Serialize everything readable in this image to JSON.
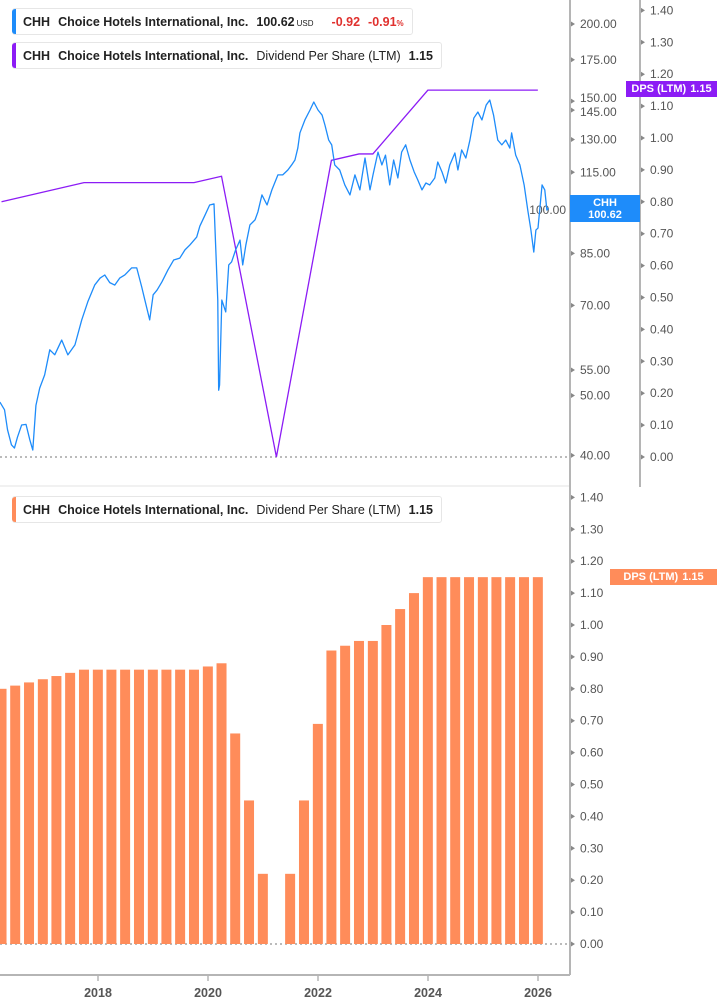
{
  "legends": {
    "price": {
      "ticker": "CHH",
      "company": "Choice Hotels International, Inc.",
      "price": "100.62",
      "currency": "USD",
      "change": "-0.92",
      "change_pct": "-0.91",
      "pct_sign": "%"
    },
    "dps_top": {
      "ticker": "CHH",
      "company": "Choice Hotels International, Inc.",
      "metric": "Dividend Per Share (LTM)",
      "value": "1.15"
    },
    "dps_bottom": {
      "ticker": "CHH",
      "company": "Choice Hotels International, Inc.",
      "metric": "Dividend Per Share (LTM)",
      "value": "1.15"
    }
  },
  "tags": {
    "price": {
      "line1": "CHH",
      "line2": "100.62"
    },
    "dps_top": {
      "line1": "DPS (LTM)",
      "line2": "1.15"
    },
    "dps_bottom": {
      "line1": "DPS (LTM)",
      "line2": "1.15"
    }
  },
  "colors": {
    "price": "#1e8cfa",
    "dps_line": "#8c1cf5",
    "dps_bar": "#ff8c5a",
    "axis": "#b5b5b5",
    "text": "#555555"
  },
  "chart_data": [
    {
      "type": "line",
      "scale": "log",
      "series_name": "CHH",
      "ylim": [
        40,
        215
      ],
      "y_ticks": [
        "200.00",
        "175.00",
        "150.00",
        "145.00",
        "130.00",
        "115.00",
        "100.00",
        "85.00",
        "70.00",
        "55.00",
        "50.00",
        "40.00"
      ],
      "price": [
        [
          "2016-03-20",
          48.8
        ],
        [
          "2016-04-20",
          47.4
        ],
        [
          "2016-05-10",
          44.0
        ],
        [
          "2016-06-05",
          41.6
        ],
        [
          "2016-06-25",
          41.1
        ],
        [
          "2016-07-15",
          42.8
        ],
        [
          "2016-08-12",
          44.8
        ],
        [
          "2016-09-10",
          44.9
        ],
        [
          "2016-10-05",
          42.4
        ],
        [
          "2016-10-25",
          40.8
        ],
        [
          "2016-11-15",
          48.2
        ],
        [
          "2016-12-10",
          51.4
        ],
        [
          "2017-01-12",
          54.0
        ],
        [
          "2017-02-15",
          59.3
        ],
        [
          "2017-03-20",
          58.2
        ],
        [
          "2017-05-05",
          61.5
        ],
        [
          "2017-06-15",
          58.2
        ],
        [
          "2017-08-01",
          60.4
        ],
        [
          "2017-09-15",
          66.3
        ],
        [
          "2017-10-25",
          70.9
        ],
        [
          "2017-12-10",
          75.5
        ],
        [
          "2018-01-15",
          77.5
        ],
        [
          "2018-02-15",
          78.4
        ],
        [
          "2018-03-20",
          76.2
        ],
        [
          "2018-04-22",
          75.5
        ],
        [
          "2018-05-25",
          77.5
        ],
        [
          "2018-06-28",
          78.4
        ],
        [
          "2018-08-12",
          80.5
        ],
        [
          "2018-09-15",
          80.5
        ],
        [
          "2018-10-18",
          75.0
        ],
        [
          "2018-11-08",
          71.4
        ],
        [
          "2018-12-10",
          66.3
        ],
        [
          "2019-01-02",
          72.8
        ],
        [
          "2019-01-28",
          74.1
        ],
        [
          "2019-03-01",
          76.4
        ],
        [
          "2019-04-10",
          79.9
        ],
        [
          "2019-05-18",
          82.9
        ],
        [
          "2019-06-28",
          83.5
        ],
        [
          "2019-08-01",
          86.1
        ],
        [
          "2019-09-03",
          87.7
        ],
        [
          "2019-10-18",
          90.3
        ],
        [
          "2019-11-08",
          94.1
        ],
        [
          "2019-12-12",
          98.0
        ],
        [
          "2020-01-12",
          101.8
        ],
        [
          "2020-02-10",
          102.2
        ],
        [
          "2020-02-22",
          86.1
        ],
        [
          "2020-03-06",
          71.4
        ],
        [
          "2020-03-12",
          51.0
        ],
        [
          "2020-03-18",
          52.0
        ],
        [
          "2020-04-02",
          71.4
        ],
        [
          "2020-04-28",
          68.3
        ],
        [
          "2020-05-18",
          81.4
        ],
        [
          "2020-06-06",
          82.3
        ],
        [
          "2020-07-03",
          86.1
        ],
        [
          "2020-08-01",
          89.3
        ],
        [
          "2020-08-19",
          81.4
        ],
        [
          "2020-09-09",
          87.7
        ],
        [
          "2020-10-06",
          94.5
        ],
        [
          "2020-11-09",
          96.3
        ],
        [
          "2020-11-28",
          99.2
        ],
        [
          "2020-12-25",
          105.7
        ],
        [
          "2021-01-28",
          101.8
        ],
        [
          "2021-03-01",
          107.7
        ],
        [
          "2021-04-10",
          113.9
        ],
        [
          "2021-05-12",
          113.9
        ],
        [
          "2021-06-15",
          116.0
        ],
        [
          "2021-07-10",
          118.2
        ],
        [
          "2021-08-01",
          120.4
        ],
        [
          "2021-08-20",
          125.9
        ],
        [
          "2021-09-03",
          133.2
        ],
        [
          "2021-10-06",
          139.8
        ],
        [
          "2021-11-09",
          145.1
        ],
        [
          "2021-12-04",
          149.5
        ],
        [
          "2022-01-01",
          145.1
        ],
        [
          "2022-01-28",
          142.4
        ],
        [
          "2022-02-16",
          137.2
        ],
        [
          "2022-03-13",
          129.7
        ],
        [
          "2022-04-02",
          127.4
        ],
        [
          "2022-04-22",
          118.2
        ],
        [
          "2022-05-25",
          116.0
        ],
        [
          "2022-06-28",
          109.7
        ],
        [
          "2022-08-01",
          105.7
        ],
        [
          "2022-09-03",
          113.9
        ],
        [
          "2022-10-06",
          107.7
        ],
        [
          "2022-11-09",
          121.3
        ],
        [
          "2022-12-12",
          107.7
        ],
        [
          "2023-01-01",
          113.9
        ],
        [
          "2023-02-03",
          124.0
        ],
        [
          "2023-03-01",
          118.2
        ],
        [
          "2023-03-25",
          122.6
        ],
        [
          "2023-04-22",
          109.7
        ],
        [
          "2023-05-18",
          120.4
        ],
        [
          "2023-06-15",
          112.6
        ],
        [
          "2023-07-10",
          124.0
        ],
        [
          "2023-08-06",
          127.4
        ],
        [
          "2023-09-03",
          120.4
        ],
        [
          "2023-10-01",
          115.2
        ],
        [
          "2023-10-25",
          111.8
        ],
        [
          "2023-11-22",
          107.7
        ],
        [
          "2023-12-18",
          110.5
        ],
        [
          "2024-01-12",
          109.7
        ],
        [
          "2024-02-15",
          112.6
        ],
        [
          "2024-03-06",
          119.5
        ],
        [
          "2024-04-03",
          115.2
        ],
        [
          "2024-04-28",
          110.5
        ],
        [
          "2024-05-25",
          118.2
        ],
        [
          "2024-06-28",
          123.6
        ],
        [
          "2024-07-18",
          116.0
        ],
        [
          "2024-08-12",
          125.0
        ],
        [
          "2024-09-09",
          121.3
        ],
        [
          "2024-10-06",
          129.7
        ],
        [
          "2024-11-01",
          140.8
        ],
        [
          "2024-11-28",
          144.0
        ],
        [
          "2024-12-25",
          139.8
        ],
        [
          "2025-01-22",
          147.8
        ],
        [
          "2025-02-15",
          150.6
        ],
        [
          "2025-03-12",
          142.4
        ],
        [
          "2025-04-09",
          129.7
        ],
        [
          "2025-05-06",
          127.4
        ],
        [
          "2025-06-01",
          129.7
        ],
        [
          "2025-06-28",
          125.9
        ],
        [
          "2025-07-10",
          133.2
        ],
        [
          "2025-08-06",
          122.6
        ],
        [
          "2025-09-03",
          118.2
        ],
        [
          "2025-10-01",
          109.7
        ],
        [
          "2025-10-25",
          99.9
        ],
        [
          "2025-11-15",
          92.7
        ],
        [
          "2025-12-04",
          85.4
        ],
        [
          "2025-12-18",
          92.7
        ],
        [
          "2026-01-01",
          93.4
        ],
        [
          "2026-01-28",
          109.7
        ],
        [
          "2026-02-15",
          107.7
        ],
        [
          "2026-03-01",
          99.9
        ],
        [
          "2026-03-12",
          100.62
        ]
      ],
      "dps_series_name": "DPS (LTM)",
      "dps_ylim": [
        0,
        1.4
      ],
      "dps_ticks": [
        "1.40",
        "1.30",
        "1.20",
        "1.10",
        "1.00",
        "0.90",
        "0.80",
        "0.70",
        "0.60",
        "0.50",
        "0.40",
        "0.30",
        "0.20",
        "0.10",
        "0.00"
      ],
      "dps_line": [
        [
          "2016-03-31",
          0.8
        ],
        [
          "2017-09-30",
          0.86
        ],
        [
          "2019-09-30",
          0.86
        ],
        [
          "2020-03-31",
          0.88
        ],
        [
          "2021-03-31",
          0.0
        ],
        [
          "2022-03-31",
          0.93
        ],
        [
          "2022-09-30",
          0.95
        ],
        [
          "2022-12-31",
          0.95
        ],
        [
          "2023-12-31",
          1.15
        ],
        [
          "2025-12-31",
          1.15
        ]
      ]
    },
    {
      "type": "bar",
      "series_name": "DPS (LTM)",
      "ylim": [
        0,
        1.4
      ],
      "y_ticks": [
        "1.40",
        "1.30",
        "1.20",
        "1.10",
        "1.00",
        "0.90",
        "0.80",
        "0.70",
        "0.60",
        "0.50",
        "0.40",
        "0.30",
        "0.20",
        "0.10",
        "0.00"
      ],
      "x_ticks": [
        "2018",
        "2020",
        "2022",
        "2024",
        "2026"
      ],
      "categories": [
        "2016-03-31",
        "2016-06-30",
        "2016-09-30",
        "2016-12-31",
        "2017-03-31",
        "2017-06-30",
        "2017-09-30",
        "2017-12-31",
        "2018-03-31",
        "2018-06-30",
        "2018-09-30",
        "2018-12-31",
        "2019-03-31",
        "2019-06-30",
        "2019-09-30",
        "2019-12-31",
        "2020-03-31",
        "2020-06-30",
        "2020-09-30",
        "2020-12-31",
        "2021-03-31",
        "2021-06-30",
        "2021-09-30",
        "2021-12-31",
        "2022-03-31",
        "2022-06-30",
        "2022-09-30",
        "2022-12-31",
        "2023-03-31",
        "2023-06-30",
        "2023-09-30",
        "2023-12-31",
        "2024-03-31",
        "2024-06-30",
        "2024-09-30",
        "2024-12-31",
        "2025-03-31",
        "2025-06-30",
        "2025-09-30",
        "2025-12-31"
      ],
      "values": [
        0.8,
        0.81,
        0.82,
        0.83,
        0.84,
        0.85,
        0.86,
        0.86,
        0.86,
        0.86,
        0.86,
        0.86,
        0.86,
        0.86,
        0.86,
        0.87,
        0.88,
        0.66,
        0.45,
        0.22,
        0.0,
        0.22,
        0.45,
        0.69,
        0.92,
        0.935,
        0.95,
        0.95,
        1.0,
        1.05,
        1.1,
        1.15,
        1.15,
        1.15,
        1.15,
        1.15,
        1.15,
        1.15,
        1.15,
        1.15
      ]
    }
  ]
}
